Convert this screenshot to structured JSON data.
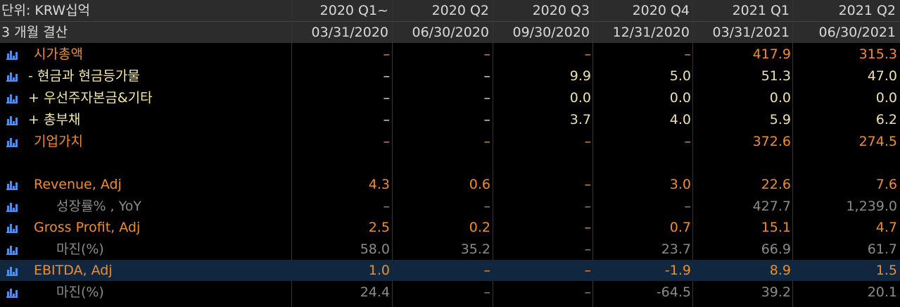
{
  "header": {
    "unit_label": "단위: KRW십억",
    "period_label": "3 개월 결산",
    "columns": [
      {
        "quarter": "2020 Q1~",
        "date": "03/31/2020"
      },
      {
        "quarter": "2020 Q2",
        "date": "06/30/2020"
      },
      {
        "quarter": "2020 Q3",
        "date": "09/30/2020"
      },
      {
        "quarter": "2020 Q4",
        "date": "12/31/2020"
      },
      {
        "quarter": "2021 Q1",
        "date": "03/31/2021"
      },
      {
        "quarter": "2021 Q2",
        "date": "06/30/2021"
      }
    ]
  },
  "rows": [
    {
      "label": "시가총액",
      "style": "orange",
      "indent": "main",
      "icon": "bar-chart-icon",
      "values": [
        "–",
        "–",
        "–",
        "–",
        "417.9",
        "315.3"
      ]
    },
    {
      "label": "- 현금과 현금등가물",
      "style": "yellow",
      "indent": "sign",
      "icon": "bar-chart-icon",
      "values": [
        "–",
        "–",
        "9.9",
        "5.0",
        "51.3",
        "47.0"
      ]
    },
    {
      "label": "+ 우선주자본금&기타",
      "style": "yellow",
      "indent": "sign",
      "icon": "bar-chart-icon",
      "values": [
        "–",
        "–",
        "0.0",
        "0.0",
        "0.0",
        "0.0"
      ]
    },
    {
      "label": "+ 총부채",
      "style": "yellow",
      "indent": "sign",
      "icon": "bar-chart-icon",
      "values": [
        "–",
        "–",
        "3.7",
        "4.0",
        "5.9",
        "6.2"
      ]
    },
    {
      "label": "기업가치",
      "style": "orange",
      "indent": "main",
      "icon": "bar-chart-icon",
      "values": [
        "–",
        "–",
        "–",
        "–",
        "372.6",
        "274.5"
      ]
    },
    {
      "label": "Revenue, Adj",
      "style": "orange",
      "indent": "main",
      "icon": "bar-chart-icon",
      "values": [
        "4.3",
        "0.6",
        "–",
        "3.0",
        "22.6",
        "7.6"
      ]
    },
    {
      "label": "성장률% , YoY",
      "style": "gray",
      "indent": "sub",
      "icon": "bar-chart-icon",
      "values": [
        "–",
        "–",
        "–",
        "–",
        "427.7",
        "1,239.0"
      ]
    },
    {
      "label": "Gross Profit, Adj",
      "style": "orange",
      "indent": "main",
      "icon": "bar-chart-icon",
      "values": [
        "2.5",
        "0.2",
        "–",
        "0.7",
        "15.1",
        "4.7"
      ]
    },
    {
      "label": "마진(%)",
      "style": "gray",
      "indent": "sub",
      "icon": "bar-chart-icon",
      "values": [
        "58.0",
        "35.2",
        "–",
        "23.7",
        "66.9",
        "61.7"
      ]
    },
    {
      "label": "EBITDA, Adj",
      "style": "orange",
      "indent": "main",
      "icon": "bar-chart-icon",
      "selected": true,
      "values": [
        "1.0",
        "–",
        "–",
        "-1.9",
        "8.9",
        "1.5"
      ]
    },
    {
      "label": "마진(%)",
      "style": "gray",
      "indent": "sub",
      "icon": "bar-chart-icon",
      "values": [
        "24.4",
        "–",
        "–",
        "-64.5",
        "39.2",
        "20.1"
      ]
    }
  ],
  "colors": {
    "orange": "#f28c28",
    "yellow": "#f4e8a4",
    "gray": "#8b8b8b",
    "header_bg": "#2c2c2c",
    "selected_bg": "#10273f",
    "icon_blue": "#4f8fe8"
  }
}
